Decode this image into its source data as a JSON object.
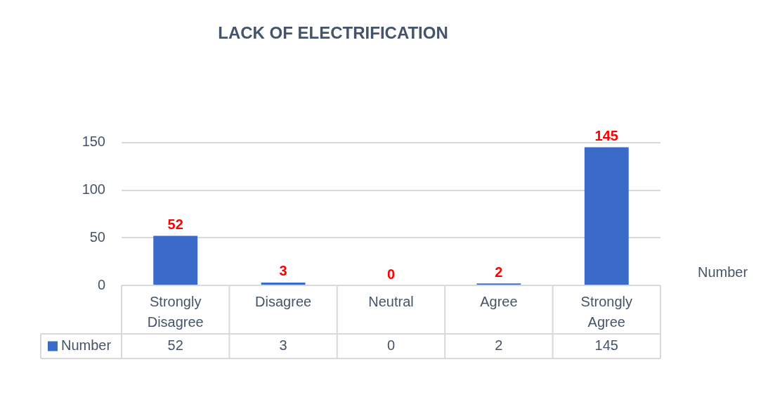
{
  "chart_data": {
    "type": "bar",
    "title": "LACK OF ELECTRIFICATION",
    "categories": [
      "Strongly Disagree",
      "Disagree",
      "Neutral",
      "Agree",
      "Strongly Agree"
    ],
    "series": [
      {
        "name": "Number",
        "color": "#3a6bc8",
        "values": [
          52,
          3,
          0,
          2,
          145
        ]
      }
    ],
    "ylim": [
      0,
      150
    ],
    "yticks": [
      0,
      50,
      100,
      150
    ],
    "grid": "y",
    "legend": "bottom left",
    "data_labels": true,
    "annotations": [
      {
        "text": "52",
        "x": "Strongly Disagree",
        "y": 52
      },
      {
        "text": "3",
        "x": "Disagree",
        "y": 3
      },
      {
        "text": "0",
        "x": "Neutral",
        "y": 0
      },
      {
        "text": "2",
        "x": "Agree",
        "y": 2
      },
      {
        "text": "145",
        "x": "Strongly Agree",
        "y": 145
      }
    ]
  }
}
